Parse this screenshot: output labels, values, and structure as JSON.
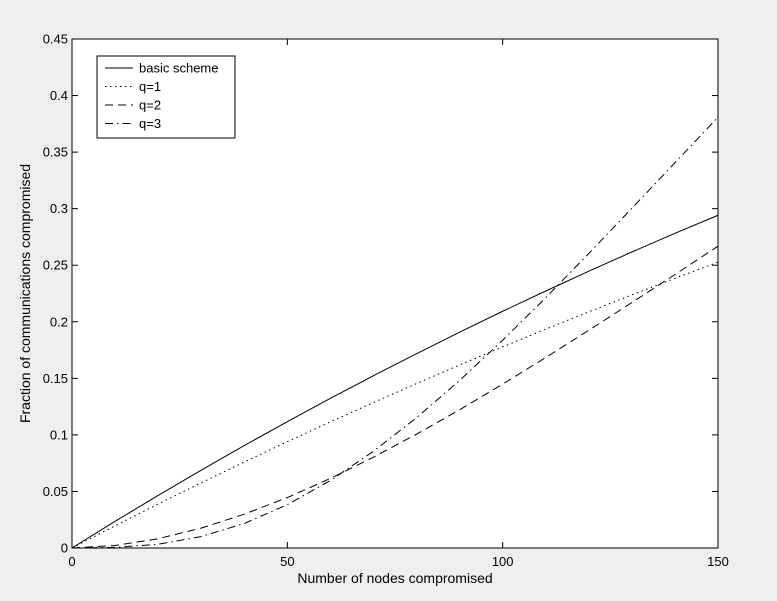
{
  "chart_data": {
    "type": "line",
    "title": "",
    "xlabel": "Number of nodes compromised",
    "ylabel": "Fraction of communications compromised",
    "xlim": [
      0,
      150
    ],
    "ylim": [
      0,
      0.45
    ],
    "xticks": [
      0,
      50,
      100,
      150
    ],
    "xtick_labels": [
      "0",
      "50",
      "100",
      "150"
    ],
    "yticks": [
      0,
      0.05,
      0.1,
      0.15,
      0.2,
      0.25,
      0.3,
      0.35,
      0.4,
      0.45
    ],
    "ytick_labels": [
      "0",
      "0.05",
      "0.1",
      "0.15",
      "0.2",
      "0.25",
      "0.3",
      "0.35",
      "0.4",
      "0.45"
    ],
    "grid": false,
    "legend_position": "top-left",
    "series": [
      {
        "name": "basic scheme",
        "line_style": "solid",
        "x": [
          0,
          10,
          20,
          30,
          40,
          50,
          60,
          70,
          80,
          90,
          100,
          110,
          120,
          130,
          140,
          150
        ],
        "y": [
          0,
          0.0236,
          0.0465,
          0.0688,
          0.0906,
          0.1117,
          0.1323,
          0.1523,
          0.1718,
          0.1908,
          0.2093,
          0.2272,
          0.2447,
          0.2617,
          0.2782,
          0.2942
        ]
      },
      {
        "name": "q=1",
        "line_style": "dotted",
        "x": [
          0,
          10,
          20,
          30,
          40,
          50,
          60,
          70,
          80,
          90,
          100,
          110,
          120,
          130,
          140,
          150
        ],
        "y": [
          0,
          0.0196,
          0.0389,
          0.0576,
          0.076,
          0.094,
          0.1115,
          0.1286,
          0.1454,
          0.1618,
          0.1778,
          0.1935,
          0.2088,
          0.2238,
          0.2384,
          0.2527
        ]
      },
      {
        "name": "q=2",
        "line_style": "dashed",
        "x": [
          0,
          10,
          20,
          30,
          40,
          50,
          60,
          70,
          80,
          90,
          100,
          110,
          120,
          130,
          140,
          150
        ],
        "y": [
          0,
          0.0022,
          0.0082,
          0.0176,
          0.0299,
          0.0446,
          0.0615,
          0.0803,
          0.1006,
          0.1222,
          0.1449,
          0.1684,
          0.1925,
          0.217,
          0.2418,
          0.2668
        ]
      },
      {
        "name": "q=3",
        "line_style": "dashdot",
        "x": [
          0,
          10,
          20,
          30,
          40,
          50,
          60,
          70,
          80,
          90,
          100,
          110,
          120,
          130,
          140,
          150
        ],
        "y": [
          0,
          0.0005,
          0.0033,
          0.0101,
          0.0217,
          0.0383,
          0.0597,
          0.0855,
          0.1152,
          0.1481,
          0.1837,
          0.2213,
          0.2604,
          0.3003,
          0.3406,
          0.3808
        ]
      }
    ],
    "colors": {
      "background": "#efefef",
      "plot_area": "#ffffff",
      "lines": "#000000"
    }
  }
}
